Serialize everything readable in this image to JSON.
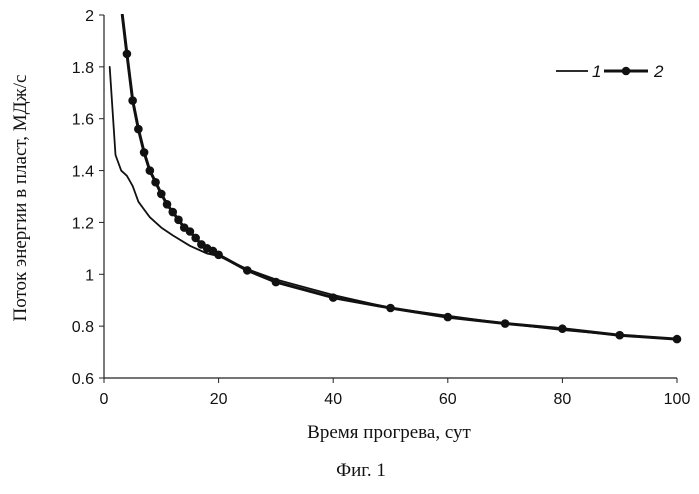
{
  "figure": {
    "caption": "Фиг. 1"
  },
  "chart_data": {
    "type": "line",
    "xlabel": "Время прогрева, сут",
    "ylabel": "Поток энергии в пласт, МДж/с",
    "xlim": [
      0,
      100
    ],
    "ylim": [
      0.6,
      2
    ],
    "xticks": [
      0,
      20,
      40,
      60,
      80,
      100
    ],
    "yticks": [
      0.6,
      0.8,
      1,
      1.2,
      1.4,
      1.6,
      1.8,
      2
    ],
    "grid": false,
    "legend_position": "top-right",
    "series": [
      {
        "name": "1",
        "color": "#111111",
        "marker": "none",
        "x": [
          1,
          2,
          3,
          4,
          5,
          6,
          7,
          8,
          9,
          10,
          12,
          15,
          18,
          20,
          25,
          30,
          40,
          50,
          60,
          70,
          80,
          90,
          100
        ],
        "y": [
          1.8,
          1.46,
          1.4,
          1.38,
          1.34,
          1.28,
          1.25,
          1.22,
          1.2,
          1.18,
          1.15,
          1.11,
          1.08,
          1.07,
          1.02,
          0.98,
          0.92,
          0.87,
          0.84,
          0.81,
          0.785,
          0.765,
          0.75
        ]
      },
      {
        "name": "2",
        "color": "#111111",
        "marker": "circle",
        "x": [
          3.2,
          4,
          5,
          6,
          7,
          8,
          9,
          10,
          11,
          12,
          13,
          14,
          15,
          16,
          17,
          18,
          19,
          20,
          25,
          30,
          40,
          50,
          60,
          70,
          80,
          90,
          100
        ],
        "y": [
          2,
          1.85,
          1.67,
          1.56,
          1.47,
          1.4,
          1.355,
          1.31,
          1.27,
          1.24,
          1.21,
          1.18,
          1.165,
          1.14,
          1.115,
          1.1,
          1.09,
          1.075,
          1.015,
          0.97,
          0.91,
          0.87,
          0.835,
          0.81,
          0.79,
          0.765,
          0.75
        ]
      }
    ]
  }
}
